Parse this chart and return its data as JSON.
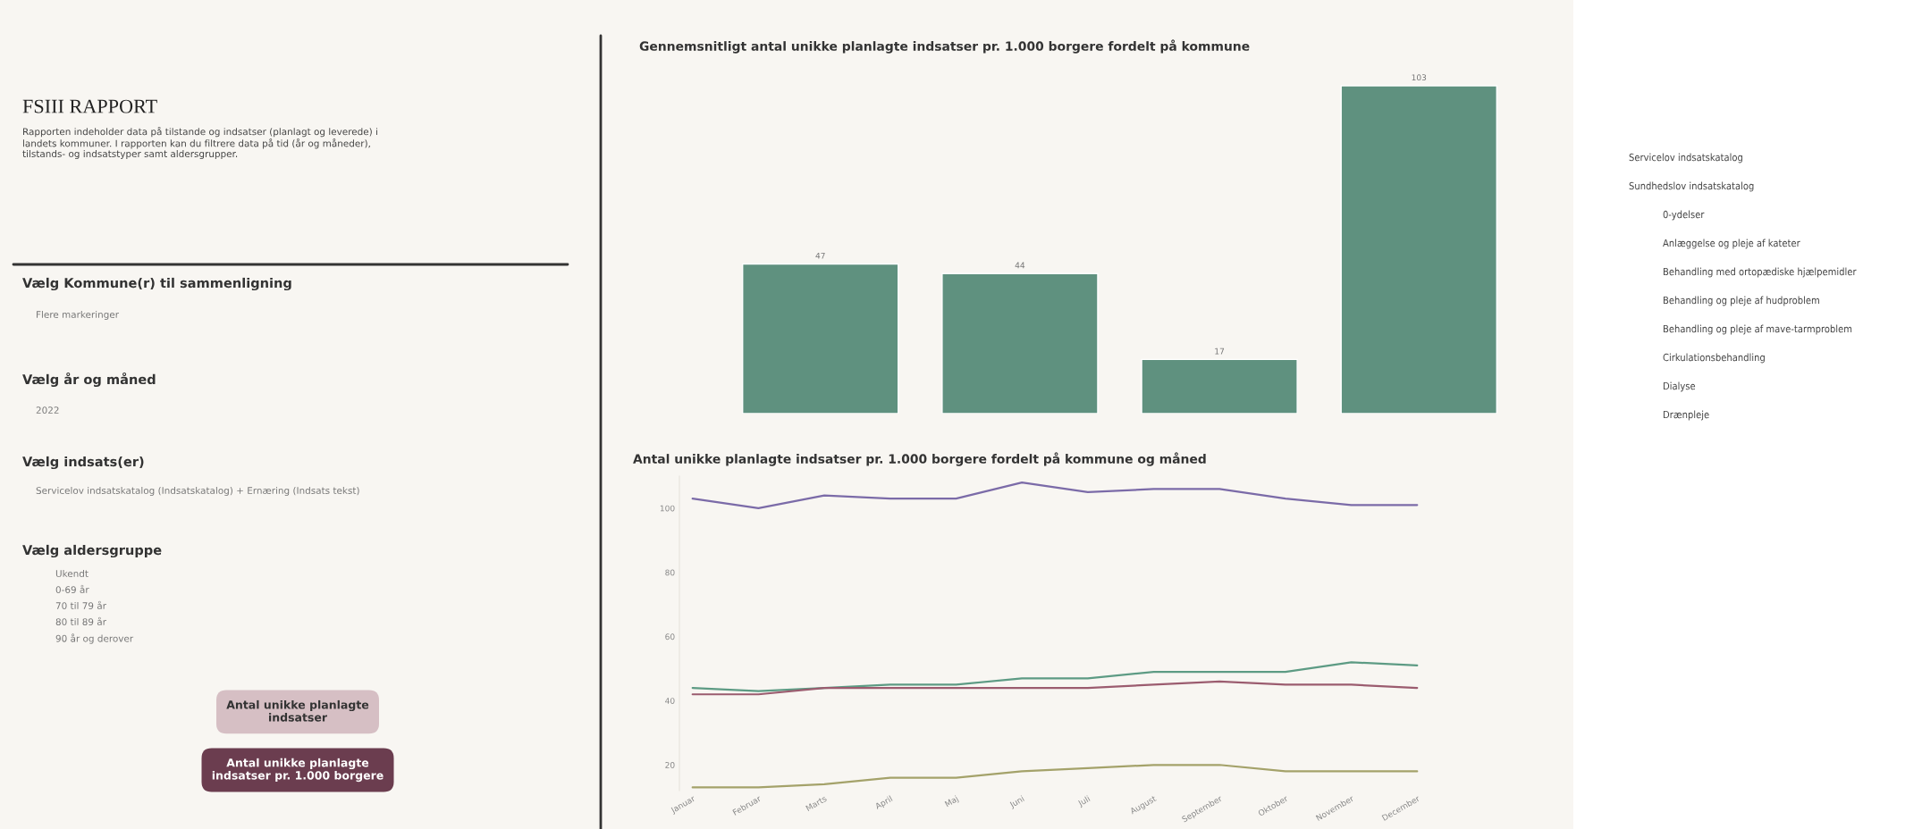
{
  "chart_data": [
    {
      "type": "other",
      "title": "FSIII RAPPORT",
      "annotations": [
        "Rapporten indeholder data på tilstande og indsatser (planlagt og leverede) i\nlandets kommuner. I rapporten kan du filtrere data på tid (år og måneder),\ntilstands- og indsatstyper samt aldersgrupper.",
        "Vælg Kommune(r) til sammenligning",
        "Flere markeringer",
        "Vælg år og måned",
        "2022",
        "Vælg indsats(er)",
        "Servicelov indsatskatalog (Indsatskatalog) + Ernæring (Indsats tekst)",
        "Vælg aldersgruppe",
        "Ukendt",
        "0-69 år",
        "70 til 79 år",
        "80 til 89 år",
        "90 år og derover",
        "Antal unikke planlagte\nindsatser",
        "Antal unikke planlagte\nindsatser pr. 1.000 borgere"
      ]
    },
    {
      "type": "bar",
      "title": "Gennemsnitligt antal unikke planlagte indsatser pr. 1.000 borgere fordelt på kommune",
      "categories": [
        null,
        null,
        null,
        null
      ],
      "values": [
        47,
        44,
        17,
        103
      ],
      "color": "#5f917f",
      "data_labels": true
    },
    {
      "type": "line",
      "title": "Antal unikke planlagte indsatser pr. 1.000 borgere fordelt på kommune og måned",
      "categories": [
        "Januar",
        "Februar",
        "Marts",
        "April",
        "Maj",
        "Juni",
        "Juli",
        "August",
        "September",
        "Oktober",
        "November",
        "December"
      ],
      "ylim": [
        12,
        110
      ],
      "yticks": [
        20,
        40,
        60,
        80,
        100
      ],
      "series": [
        {
          "color": "#7b6ba8",
          "values": [
            103,
            100,
            104,
            103,
            103,
            108,
            105,
            106,
            106,
            103,
            101,
            101
          ]
        },
        {
          "color": "#5d9b84",
          "values": [
            44,
            43,
            44,
            45,
            45,
            47,
            47,
            49,
            49,
            49,
            52,
            51
          ]
        },
        {
          "color": "#9b5c6f",
          "values": [
            42,
            42,
            44,
            44,
            44,
            44,
            44,
            45,
            46,
            45,
            45,
            44
          ]
        },
        {
          "color": "#a4a26a",
          "values": [
            13,
            13,
            14,
            16,
            16,
            18,
            19,
            20,
            20,
            18,
            18,
            18
          ]
        }
      ]
    },
    {
      "type": "other",
      "annotations": [
        "Servicelov indsatskatalog",
        "Sundhedslov indsatskatalog",
        "0-ydelser",
        "Anlæggelse og pleje af kateter",
        "Behandling med ortopædiske hjælpemidler",
        "Behandling og pleje af hudproblem",
        "Behandling og pleje af mave-tarmproblem",
        "Cirkulationsbehandling",
        "Dialyse",
        "Drænpleje"
      ]
    }
  ]
}
